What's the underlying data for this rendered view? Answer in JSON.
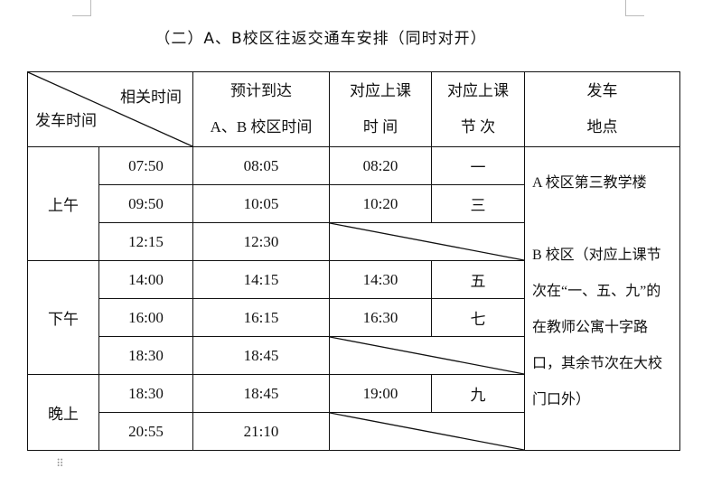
{
  "title": "（二）A、B校区往返交通车安排（同时对开）",
  "header": {
    "corner_top": "相关时间",
    "corner_bottom": "发车时间",
    "arrive_l1": "预计到达",
    "arrive_l2": "A、B 校区时间",
    "class_time_l1": "对应上课",
    "class_time_l2": "时 间",
    "period_l1": "对应上课",
    "period_l2": "节 次",
    "place_l1": "发车",
    "place_l2": "地点"
  },
  "groups": [
    "上午",
    "下午",
    "晚上"
  ],
  "rows": [
    {
      "depart": "07:50",
      "arrive": "08:05",
      "class_time": "08:20",
      "period": "一"
    },
    {
      "depart": "09:50",
      "arrive": "10:05",
      "class_time": "10:20",
      "period": "三"
    },
    {
      "depart": "12:15",
      "arrive": "12:30"
    },
    {
      "depart": "14:00",
      "arrive": "14:15",
      "class_time": "14:30",
      "period": "五"
    },
    {
      "depart": "16:00",
      "arrive": "16:15",
      "class_time": "16:30",
      "period": "七"
    },
    {
      "depart": "18:30",
      "arrive": "18:45"
    },
    {
      "depart": "18:30",
      "arrive": "18:45",
      "class_time": "19:00",
      "period": "九"
    },
    {
      "depart": "20:55",
      "arrive": "21:10"
    }
  ],
  "place": {
    "a": "A 校区第三教学楼",
    "b": "B 校区（对应上课节次在“一、五、九”的在教师公寓十字路口，其余节次在大校门口外）"
  }
}
